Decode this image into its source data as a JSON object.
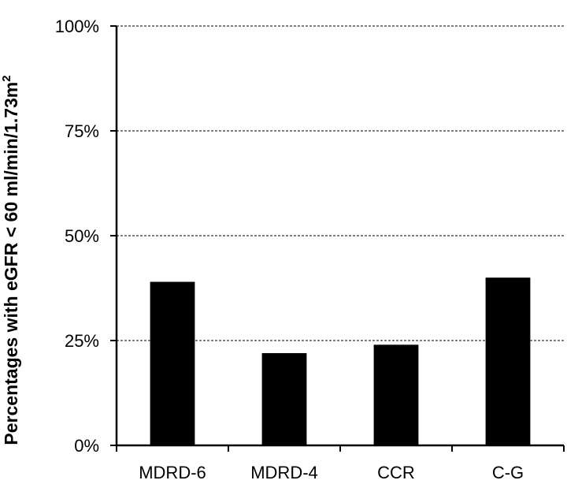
{
  "chart_data": {
    "type": "bar",
    "title": "",
    "xlabel": "",
    "ylabel": "Percentages with eGFR < 60 ml/min/1.73m",
    "ylabel_superscript": "2",
    "categories": [
      "MDRD-6",
      "MDRD-4",
      "CCR",
      "C-G"
    ],
    "values": [
      39,
      22,
      24,
      40
    ],
    "ylim": [
      0,
      100
    ],
    "yticks": [
      0,
      25,
      50,
      75,
      100
    ],
    "ytick_labels": [
      "0%",
      "25%",
      "50%",
      "75%",
      "100%"
    ],
    "grid": "horizontal dashed",
    "legend": "none",
    "colors": {
      "bar": "#000000",
      "grid": "#000000",
      "axis": "#000000"
    }
  }
}
